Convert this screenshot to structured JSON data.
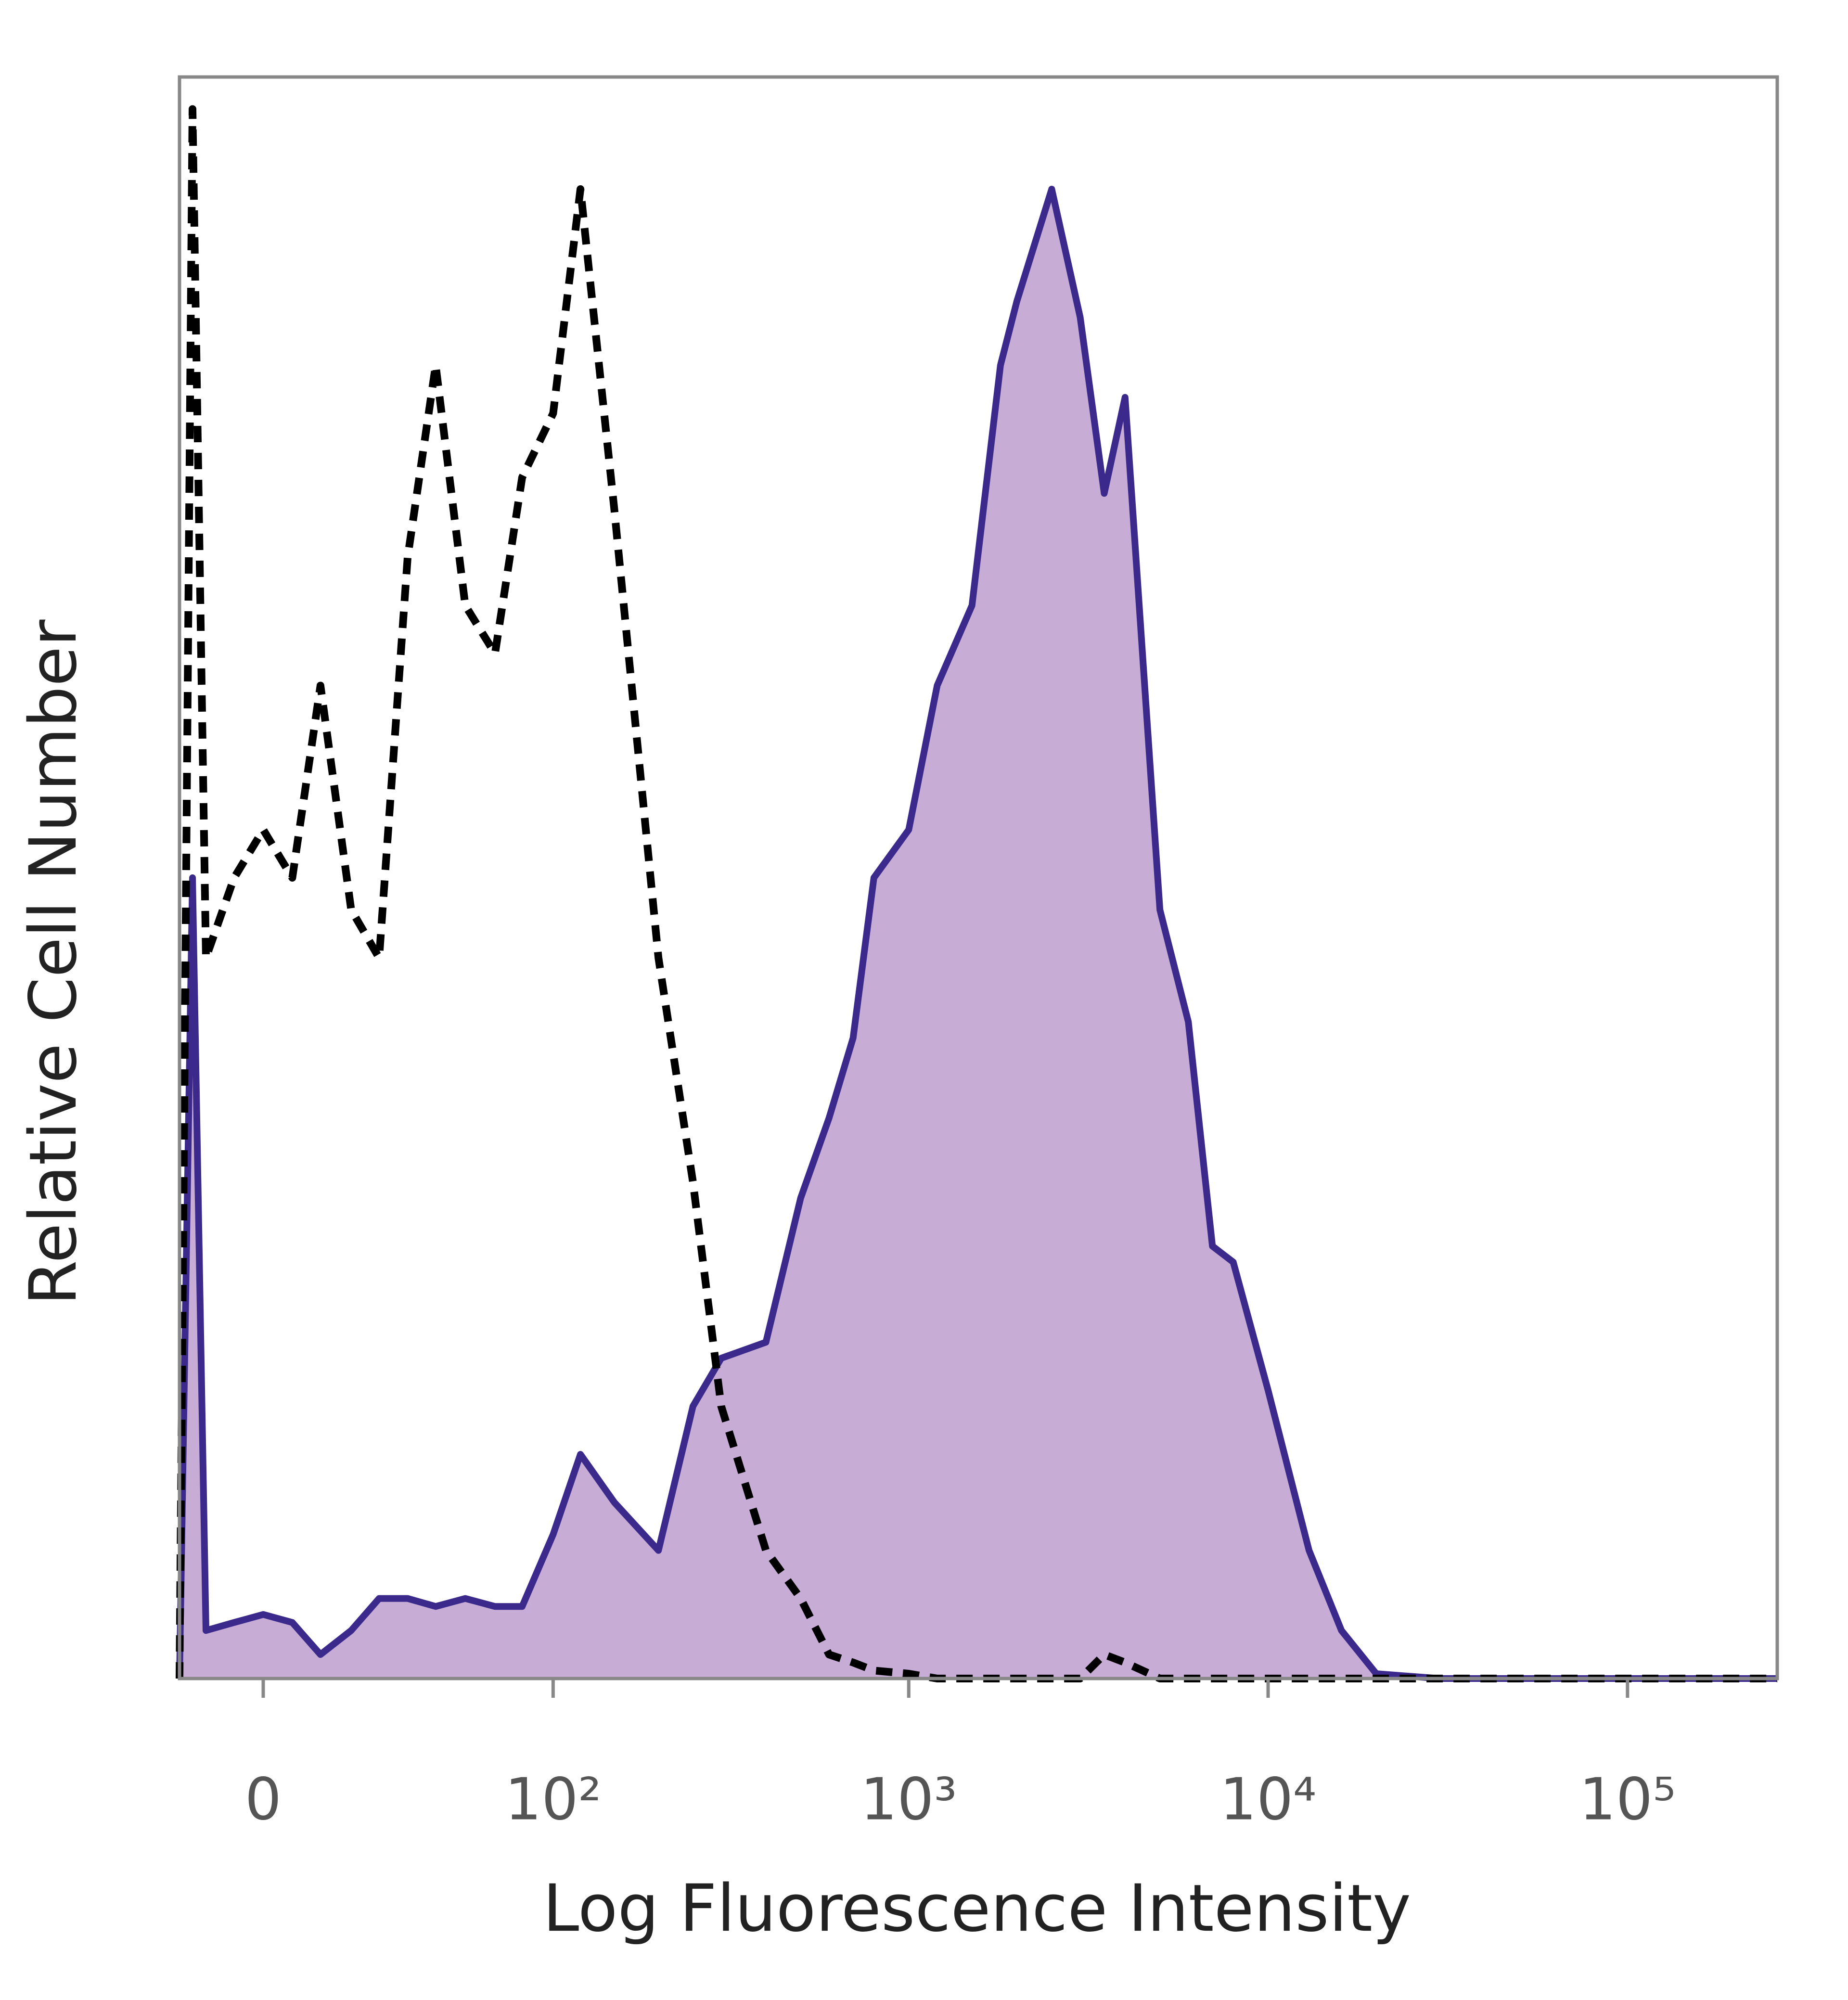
{
  "chart_data": {
    "type": "histogram-overlay",
    "xlabel": "Log Fluorescence Intensity",
    "ylabel": "Relative Cell Number",
    "xscale": "asinh",
    "xlim": [
      -18,
      261000
    ],
    "xticks": [
      0,
      {
        "value": 100,
        "label": "10²"
      },
      {
        "value": 1000,
        "label": "10³"
      },
      {
        "value": 10000,
        "label": "10⁴"
      },
      {
        "value": 100000,
        "label": "10⁵"
      }
    ],
    "ylim": [
      0,
      100
    ],
    "x": [
      -18,
      -15,
      -12,
      -6,
      0,
      6,
      12,
      19,
      26,
      34,
      43,
      54,
      67,
      81,
      100,
      120,
      150,
      200,
      250,
      300,
      400,
      500,
      600,
      700,
      800,
      1000,
      1200,
      1500,
      1800,
      2000,
      2500,
      3000,
      3500,
      4000,
      5000,
      6000,
      7000,
      8000,
      10000,
      13000,
      16000,
      20000,
      30000,
      50000,
      100000,
      261000
    ],
    "series": [
      {
        "color": "#3b2a8c",
        "fill": "#c7acd6",
        "linestyle": "solid",
        "values": [
          0,
          50,
          3,
          3.5,
          4,
          3.5,
          1.5,
          3,
          5,
          5,
          4.5,
          5,
          4.5,
          4.5,
          9,
          14,
          11,
          8,
          17,
          20,
          21,
          30,
          35,
          40,
          50,
          53,
          62,
          67,
          82,
          86,
          93,
          85,
          74,
          80,
          48,
          41,
          27,
          26,
          18,
          8,
          3,
          0.3,
          0,
          0,
          0,
          0
        ]
      },
      {
        "color": "#000000",
        "linestyle": "dashed",
        "values": [
          0,
          98,
          45,
          50,
          53,
          50,
          62,
          48,
          45,
          70,
          82,
          67,
          64,
          75,
          79,
          93,
          73,
          45,
          31,
          17,
          8,
          5,
          1.5,
          1,
          0.5,
          0.3,
          0,
          0,
          0,
          0,
          0,
          0,
          1.5,
          1,
          0,
          0,
          0,
          0,
          0,
          0,
          0,
          0,
          0,
          0,
          0,
          0
        ]
      }
    ]
  }
}
